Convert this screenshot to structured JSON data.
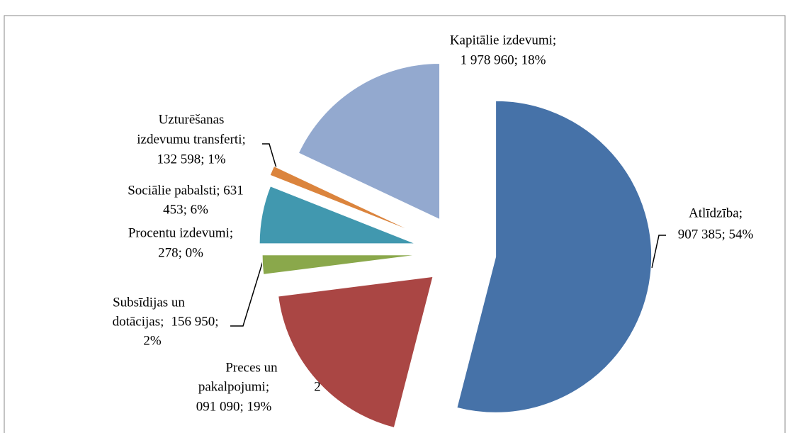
{
  "chart_data": {
    "type": "pie",
    "categories": [
      "Atlīdzība",
      "Preces un pakalpojumi",
      "Subsīdijas un dotācijas",
      "Procentu izdevumi",
      "Sociālie pabalsti",
      "Uzturēšanas izdevumu transferti",
      "Kapitālie izdevumi"
    ],
    "values": [
      54,
      19,
      2,
      0,
      6,
      1,
      18
    ],
    "value_labels": [
      [
        "Atlīdzība;",
        "907 385; 54%"
      ],
      [
        "Preces un",
        "pakalpojumi;",
        "2",
        "091 090; 19%"
      ],
      [
        "Subsīdijas un",
        "dotācijas;",
        "156 950;",
        "2%"
      ],
      [
        "Procentu izdevumi;",
        "278; 0%"
      ],
      [
        "Sociālie pabalsti; 631",
        "453; 6%"
      ],
      [
        "Uzturēšanas",
        "izdevumu transferti;",
        "132 598; 1%"
      ],
      [
        "Kapitālie izdevumi;",
        "1 978 960; 18%"
      ]
    ],
    "colors": [
      "#4672a8",
      "#aa4644",
      "#8aa84b",
      "#7d60a0",
      "#4198af",
      "#db843d",
      "#93a9cf"
    ]
  }
}
